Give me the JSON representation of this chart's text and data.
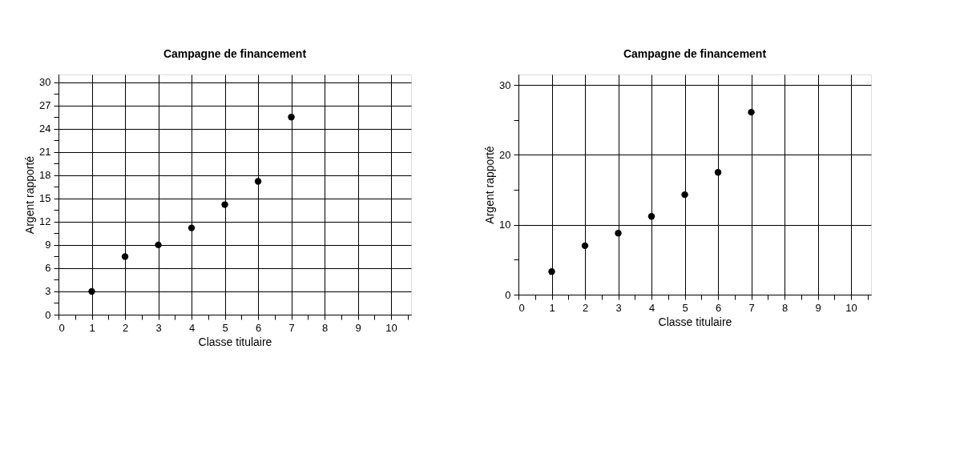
{
  "chart_data": [
    {
      "type": "scatter",
      "title": "Campagne de financement",
      "xlabel": "Classe titulaire",
      "ylabel": "Argent rapporté",
      "marker": "circle",
      "grid": true,
      "x": [
        1,
        2,
        3,
        4,
        5,
        6,
        7
      ],
      "values": [
        3,
        7.5,
        9,
        11.2,
        14.2,
        17.2,
        25.5
      ],
      "color": "#000000",
      "xlim": [
        0,
        10.6
      ],
      "ylim": [
        0,
        31
      ],
      "xticks": [
        0,
        {
          "value": 0.5,
          "label": null
        },
        1,
        {
          "value": 1.5,
          "label": null
        },
        2,
        {
          "value": 2.5,
          "label": null
        },
        3,
        {
          "value": 3.5,
          "label": null
        },
        4,
        {
          "value": 4.5,
          "label": null
        },
        5,
        {
          "value": 5.5,
          "label": null
        },
        6,
        {
          "value": 6.5,
          "label": null
        },
        7,
        {
          "value": 7.5,
          "label": null
        },
        8,
        {
          "value": 8.5,
          "label": null
        },
        9,
        {
          "value": 9.5,
          "label": null
        },
        10,
        {
          "value": 10.5,
          "label": null
        }
      ],
      "yticks": [
        0,
        {
          "value": 1.5,
          "label": null
        },
        3,
        {
          "value": 4.5,
          "label": null
        },
        6,
        {
          "value": 7.5,
          "label": null
        },
        9,
        {
          "value": 10.5,
          "label": null
        },
        12,
        {
          "value": 13.5,
          "label": null
        },
        15,
        {
          "value": 16.5,
          "label": null
        },
        18,
        {
          "value": 19.5,
          "label": null
        },
        21,
        {
          "value": 22.5,
          "label": null
        },
        24,
        {
          "value": 25.5,
          "label": null
        },
        27,
        {
          "value": 28.5,
          "label": null
        },
        30
      ]
    },
    {
      "type": "scatter",
      "title": "Campagne de financement",
      "xlabel": "Classe titulaire",
      "ylabel": "Argent rapporté",
      "marker": "circle",
      "grid": true,
      "x": [
        1,
        2,
        3,
        4,
        5,
        6,
        7
      ],
      "values": [
        3.3,
        7.0,
        8.8,
        11.2,
        14.3,
        17.5,
        26.1
      ],
      "color": "#000000",
      "xlim": [
        0,
        10.6
      ],
      "ylim": [
        0,
        31.5
      ],
      "xticks": [
        0,
        {
          "value": 0.5,
          "label": null
        },
        1,
        {
          "value": 1.5,
          "label": null
        },
        2,
        {
          "value": 2.5,
          "label": null
        },
        3,
        {
          "value": 3.5,
          "label": null
        },
        4,
        {
          "value": 4.5,
          "label": null
        },
        5,
        {
          "value": 5.5,
          "label": null
        },
        6,
        {
          "value": 6.5,
          "label": null
        },
        7,
        {
          "value": 7.5,
          "label": null
        },
        8,
        {
          "value": 8.5,
          "label": null
        },
        9,
        {
          "value": 9.5,
          "label": null
        },
        10,
        {
          "value": 10.5,
          "label": null
        }
      ],
      "yticks": [
        0,
        {
          "value": 5,
          "label": null
        },
        10,
        {
          "value": 15,
          "label": null
        },
        20,
        {
          "value": 25,
          "label": null
        },
        30
      ]
    }
  ]
}
